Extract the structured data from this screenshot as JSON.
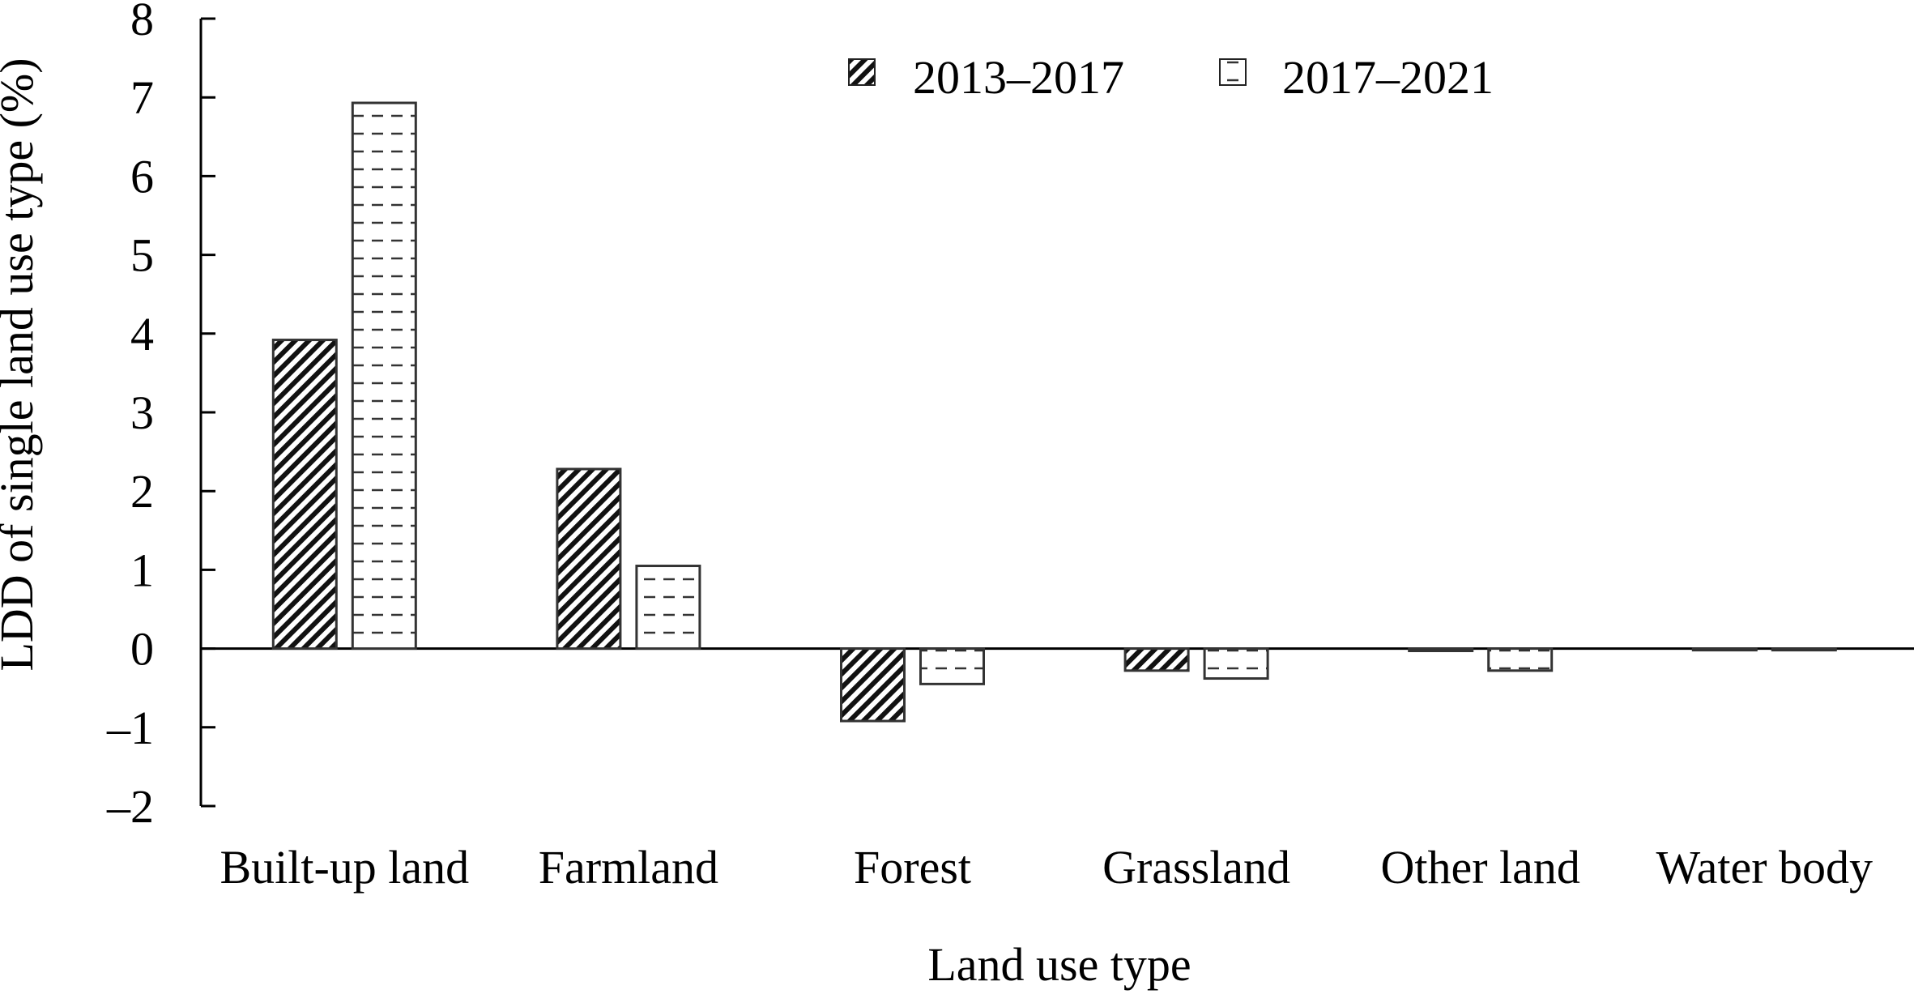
{
  "chart_data": {
    "type": "bar",
    "title": "",
    "xlabel": "Land use type",
    "ylabel": "LDD of single land use type (%)",
    "ylim": [
      -2,
      8
    ],
    "yticks": [
      "8",
      "7",
      "6",
      "5",
      "4",
      "3",
      "2",
      "1",
      "0",
      "–1",
      "–2"
    ],
    "ytick_values": [
      8,
      7,
      6,
      5,
      4,
      3,
      2,
      1,
      0,
      -1,
      -2
    ],
    "categories": [
      "Built-up land",
      "Farmland",
      "Forest",
      "Grassland",
      "Other land",
      "Water body"
    ],
    "series": [
      {
        "name": "2013–2017",
        "values": [
          3.92,
          2.28,
          -0.92,
          -0.28,
          -0.03,
          -0.02
        ],
        "pattern": "diagonal-hatch"
      },
      {
        "name": "2017–2021",
        "values": [
          6.93,
          1.05,
          -0.45,
          -0.38,
          -0.28,
          0.0
        ],
        "pattern": "dashed-horizontal"
      }
    ],
    "legend_position": "top-center",
    "grid": false,
    "colors": {
      "bar_fill": "#ffffff",
      "hatch": "#000000",
      "dash": "#444444",
      "stroke": "#333333"
    }
  }
}
